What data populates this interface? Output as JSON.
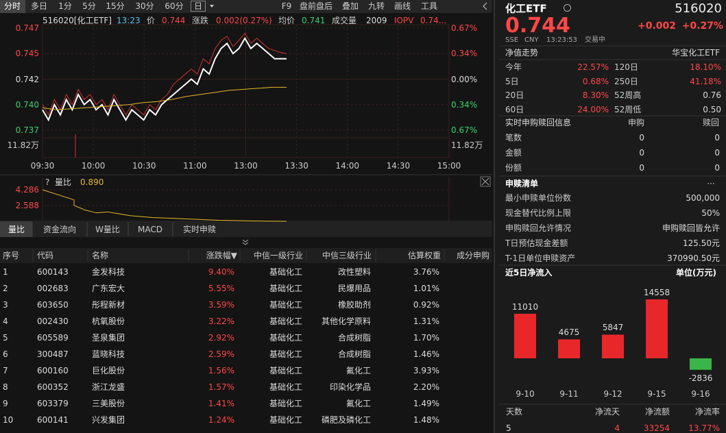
{
  "toolbar": {
    "tabs": [
      "分时",
      "多日",
      "1分",
      "5分",
      "15分",
      "30分",
      "60分",
      "日"
    ],
    "tools": [
      "F9",
      "盘前盘后",
      "叠加",
      "九转",
      "画线",
      "工具"
    ]
  },
  "quote_header": {
    "code": "516020[化工ETF]",
    "time": "13:23",
    "price_label": "价",
    "price": "0.744",
    "change_label": "涨跌",
    "change": "0.002(0.27%)",
    "avg_label": "均价",
    "avg": "0.741",
    "volume_label": "成交量",
    "volume": "2009",
    "iopv_label": "IOPV",
    "iopv": "0.74..."
  },
  "price_axis": {
    "ylim": [
      0.737,
      0.747
    ],
    "left": [
      "0.747",
      "0.745",
      "0.742",
      "0.740",
      "0.737"
    ],
    "right": [
      "0.67%",
      "0.34%",
      "0.00%",
      "0.34%",
      "0.67%"
    ],
    "volume_max": "11.82万",
    "times": [
      "09:30",
      "10:00",
      "10:30",
      "11:00",
      "13:00",
      "13:30",
      "14:00",
      "14:30",
      "15:00"
    ]
  },
  "price_series": {
    "values": [
      0.739,
      0.738,
      0.7395,
      0.7385,
      0.74,
      0.739,
      0.7405,
      0.7395,
      0.74,
      0.739,
      0.7395,
      0.7385,
      0.74,
      0.739,
      0.738,
      0.739,
      0.7385,
      0.738,
      0.739,
      0.7385,
      0.7395,
      0.74,
      0.7405,
      0.741,
      0.7415,
      0.742,
      0.7415,
      0.743,
      0.7425,
      0.744,
      0.745,
      0.7455,
      0.7445,
      0.745,
      0.746,
      0.745,
      0.7455,
      0.745,
      0.7445,
      0.744,
      0.744,
      0.744
    ]
  },
  "iopv_series": {
    "values": [
      0.7395,
      0.7385,
      0.74,
      0.739,
      0.7405,
      0.7395,
      0.741,
      0.74,
      0.7405,
      0.7395,
      0.74,
      0.739,
      0.7405,
      0.7395,
      0.7385,
      0.7395,
      0.739,
      0.7385,
      0.7395,
      0.739,
      0.74,
      0.7405,
      0.7415,
      0.742,
      0.7425,
      0.743,
      0.7425,
      0.744,
      0.7435,
      0.745,
      0.7458,
      0.7462,
      0.7452,
      0.7458,
      0.7465,
      0.7455,
      0.746,
      0.7455,
      0.745,
      0.7448,
      0.7446,
      0.7445
    ]
  },
  "avg_series": {
    "values": [
      0.7392,
      0.739,
      0.7391,
      0.7392,
      0.7393,
      0.7394,
      0.7395,
      0.7397,
      0.7398,
      0.74,
      0.7403,
      0.7405,
      0.7407,
      0.7409,
      0.741,
      0.7411,
      0.7412,
      0.7412
    ]
  },
  "indicator": {
    "help": "?",
    "name": "量比",
    "value": "0.890",
    "ticks": [
      4.286,
      2.588
    ],
    "values": [
      4.286,
      3.2,
      2.6,
      2.1,
      1.8,
      1.9,
      1.7,
      1.5,
      1.4,
      1.3,
      1.25,
      1.2,
      1.15,
      1.1,
      1.05,
      1.0,
      0.98,
      0.95,
      0.93,
      0.91,
      0.9,
      0.89
    ]
  },
  "sub_tabs": [
    "量比",
    "资金流向",
    "W量比",
    "MACD",
    "实时申赎"
  ],
  "table": {
    "headers": [
      "序号",
      "代码",
      "名称",
      "涨跌幅▼",
      "中信一级行业",
      "中信三级行业",
      "估算权重",
      "成分申购"
    ],
    "rows": [
      [
        "1",
        "600143",
        "金发科技",
        "9.40%",
        "基础化工",
        "改性塑料",
        "3.76%"
      ],
      [
        "2",
        "002683",
        "广东宏大",
        "5.55%",
        "基础化工",
        "民爆用品",
        "1.01%"
      ],
      [
        "3",
        "603650",
        "彤程新材",
        "3.59%",
        "基础化工",
        "橡胶助剂",
        "0.92%"
      ],
      [
        "4",
        "002430",
        "杭氧股份",
        "3.22%",
        "基础化工",
        "其他化学原料",
        "1.31%"
      ],
      [
        "5",
        "605589",
        "圣泉集团",
        "2.92%",
        "基础化工",
        "合成树脂",
        "1.70%"
      ],
      [
        "6",
        "300487",
        "蓝晓科技",
        "2.59%",
        "基础化工",
        "合成树脂",
        "1.46%"
      ],
      [
        "7",
        "600160",
        "巨化股份",
        "1.56%",
        "基础化工",
        "氟化工",
        "3.93%"
      ],
      [
        "8",
        "600352",
        "浙江龙盛",
        "1.57%",
        "基础化工",
        "印染化学品",
        "2.20%"
      ],
      [
        "9",
        "603379",
        "三美股份",
        "1.41%",
        "基础化工",
        "氟化工",
        "1.49%"
      ],
      [
        "10",
        "600141",
        "兴发集团",
        "1.24%",
        "基础化工",
        "磷肥及磷化工",
        "1.48%"
      ]
    ]
  },
  "panel": {
    "name": "化工ETF",
    "code": "516020",
    "price": "0.744",
    "change": "+0.002",
    "change_pct": "+0.27%",
    "market": "SSE",
    "currency": "CNY",
    "time": "13:23:53",
    "status": "交易中",
    "nav_title": "净值走势",
    "fund_name": "华宝化工ETF",
    "returns": [
      [
        "今年",
        "22.57%",
        "120日",
        "18.10%"
      ],
      [
        "5日",
        "0.68%",
        "250日",
        "41.18%"
      ],
      [
        "20日",
        "8.30%",
        "52周高",
        "0.76"
      ],
      [
        "60日",
        "24.00%",
        "52周低",
        "0.50"
      ]
    ],
    "realtime_title": "实时申购赎回信息",
    "realtime_cols": [
      "申购",
      "赎回"
    ],
    "realtime_rows": [
      [
        "笔数",
        "0",
        "0"
      ],
      [
        "金额",
        "0",
        "0"
      ],
      [
        "份额",
        "0",
        "0"
      ]
    ],
    "list_title": "申赎清单",
    "more": "···",
    "list_rows": [
      [
        "最小申赎单位份数",
        "500,000"
      ],
      [
        "现金替代比例上限",
        "50%"
      ],
      [
        "申购赎回允许情况",
        "申购赎回皆允许"
      ],
      [
        "T日预估现金差额",
        "125.50元"
      ],
      [
        "T-1日单位申赎资产",
        "370990.50元"
      ]
    ],
    "flow_title": "近5日净流入",
    "flow_unit": "单位(万元)",
    "summary_headers": [
      "天数",
      "净流天",
      "净流额",
      "净流率"
    ],
    "summary_values": [
      "5",
      "4",
      "33254",
      "13.77%"
    ]
  },
  "chart_data": {
    "type": "bar",
    "categories": [
      "9-10",
      "9-11",
      "9-12",
      "9-15",
      "9-16"
    ],
    "values": [
      11010,
      4675,
      5847,
      14558,
      -2836
    ],
    "colors": {
      "positive": "#e8272b",
      "negative": "#3bb54a"
    }
  }
}
